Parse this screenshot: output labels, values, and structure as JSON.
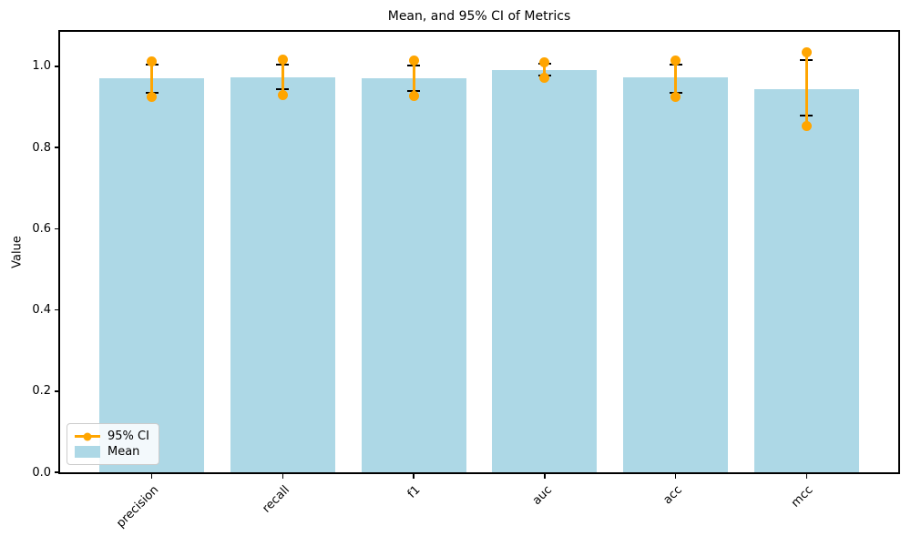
{
  "chart_data": {
    "type": "bar",
    "title": "Mean, and 95% CI of Metrics",
    "xlabel": "",
    "ylabel": "Value",
    "categories": [
      "precision",
      "recall",
      "f1",
      "auc",
      "acc",
      "mcc"
    ],
    "series": [
      {
        "name": "Mean",
        "values": [
          0.97,
          0.974,
          0.971,
          0.991,
          0.972,
          0.944
        ]
      },
      {
        "name": "95% CI low",
        "values": [
          0.924,
          0.93,
          0.926,
          0.971,
          0.924,
          0.854
        ]
      },
      {
        "name": "95% CI high",
        "values": [
          1.013,
          1.016,
          1.014,
          1.011,
          1.014,
          1.034
        ]
      },
      {
        "name": "errorbar cap low",
        "values": [
          0.935,
          0.944,
          0.94,
          0.978,
          0.935,
          0.879
        ]
      },
      {
        "name": "errorbar cap high",
        "values": [
          1.004,
          1.005,
          1.003,
          1.007,
          1.004,
          1.016
        ]
      }
    ],
    "ylim": [
      0,
      1.085
    ],
    "xlim": [
      -0.7,
      5.7
    ],
    "yticks": [
      0.0,
      0.2,
      0.4,
      0.6,
      0.8,
      1.0
    ],
    "bar_width_fraction": 0.8,
    "grid": "off",
    "legend": {
      "position": "lower left",
      "entries": [
        {
          "label": "95% CI",
          "swatch": "orange-line-with-dot"
        },
        {
          "label": "Mean",
          "swatch": "lightblue-patch"
        }
      ]
    },
    "colors": {
      "bar": "#ADD8E6",
      "ci": "#FFA500",
      "errorbar": "#000000",
      "spine": "#000000"
    }
  }
}
